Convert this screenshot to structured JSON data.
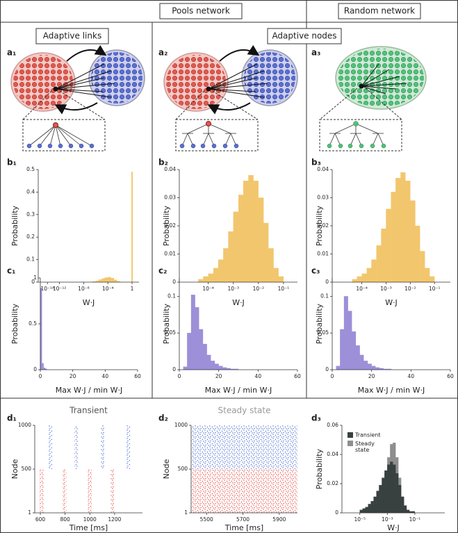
{
  "headers": [
    "Pools network",
    "Random network"
  ],
  "subheaders": [
    "Adaptive links",
    "Adaptive nodes"
  ],
  "diagrams": [
    "a₁",
    "a₂",
    "a₃"
  ],
  "chart_data": [
    {
      "type": "histogram",
      "panel": "b₁",
      "xlabel": "W·J",
      "ylabel": "Probability",
      "xlog": true,
      "color": "#f2c66d",
      "bins": [
        1e-07,
        3e-07,
        1e-06,
        3e-06,
        1e-05,
        3e-05,
        0.0001,
        0.0003,
        0.001,
        0.003,
        0.01,
        0.03,
        0.1,
        0.3,
        0.8,
        1.25
      ],
      "values": [
        0.001,
        0.003,
        0.006,
        0.011,
        0.016,
        0.02,
        0.022,
        0.018,
        0.01,
        0.004,
        0.001,
        0,
        0,
        0,
        0.49
      ],
      "xlim": [
        3e-16,
        14
      ],
      "xticks": [
        {
          "value": 1e-14,
          "label": "10⁻¹⁴"
        },
        {
          "value": 1e-12,
          "label": "10⁻¹²"
        },
        {
          "value": 1e-08,
          "label": "10⁻⁸"
        },
        {
          "value": 0.0001,
          "label": "10⁻⁴"
        },
        1
      ],
      "ylim": [
        0,
        0.5
      ],
      "yticks": [
        0,
        0.1,
        0.2,
        0.3,
        0.4,
        0.5
      ]
    },
    {
      "type": "histogram",
      "panel": "b₂",
      "xlabel": "W·J",
      "ylabel": "Probability",
      "xlog": true,
      "color": "#f2c66d",
      "bins": [
        4e-05,
        6.3e-05,
        0.0001,
        0.00016,
        0.00025,
        0.0004,
        0.00063,
        0.001,
        0.0016,
        0.0025,
        0.004,
        0.0063,
        0.01,
        0.016,
        0.025,
        0.04,
        0.063,
        0.1
      ],
      "values": [
        0.001,
        0.002,
        0.003,
        0.005,
        0.008,
        0.012,
        0.018,
        0.025,
        0.031,
        0.036,
        0.038,
        0.036,
        0.03,
        0.021,
        0.012,
        0.005,
        0.002
      ],
      "xlim": [
        7e-06,
        0.36
      ],
      "xticks": [
        {
          "value": 0.0001,
          "label": "10⁻⁴"
        },
        {
          "value": 0.001,
          "label": "10⁻³"
        },
        {
          "value": 0.01,
          "label": "10⁻²"
        },
        {
          "value": 0.1,
          "label": "10⁻¹"
        }
      ],
      "ylim": [
        0,
        0.04
      ],
      "yticks": [
        0,
        0.01,
        0.02,
        0.03,
        0.04
      ]
    },
    {
      "type": "histogram",
      "panel": "b₃",
      "xlabel": "W·J",
      "ylabel": "Probability",
      "xlog": true,
      "color": "#f2c66d",
      "bins": [
        4e-05,
        6.3e-05,
        0.0001,
        0.00016,
        0.00025,
        0.0004,
        0.00063,
        0.001,
        0.0016,
        0.0025,
        0.004,
        0.0063,
        0.01,
        0.016,
        0.025,
        0.04,
        0.063,
        0.1
      ],
      "values": [
        0.001,
        0.002,
        0.003,
        0.005,
        0.008,
        0.013,
        0.019,
        0.026,
        0.032,
        0.037,
        0.039,
        0.036,
        0.029,
        0.02,
        0.011,
        0.005,
        0.002
      ],
      "xlim": [
        6e-06,
        0.45
      ],
      "xticks": [
        {
          "value": 0.0001,
          "label": "10⁻⁴"
        },
        {
          "value": 0.001,
          "label": "10⁻³"
        },
        {
          "value": 0.01,
          "label": "10⁻²"
        },
        {
          "value": 0.1,
          "label": "10⁻¹"
        }
      ],
      "ylim": [
        0,
        0.04
      ],
      "yticks": [
        0,
        0.01,
        0.02,
        0.03,
        0.04
      ]
    },
    {
      "type": "histogram",
      "panel": "c₁",
      "xlabel": "Max W·J / min W·J",
      "ylabel": "Probability",
      "color": "#9d8fd8",
      "bins": [
        0,
        1,
        2,
        3,
        4
      ],
      "values": [
        0.89,
        0.07,
        0.02,
        0.01
      ],
      "xlim": [
        0,
        60
      ],
      "xticks": [
        0,
        20,
        40,
        60
      ],
      "ylim": [
        0,
        1
      ],
      "yticks": [
        0,
        0.5,
        1
      ]
    },
    {
      "type": "histogram",
      "panel": "c₂",
      "xlabel": "Max W·J / min W·J",
      "ylabel": "Probability",
      "color": "#9d8fd8",
      "bins": [
        0,
        2,
        4,
        6,
        8,
        10,
        12,
        14,
        16,
        18,
        20,
        22,
        24,
        26,
        28,
        30
      ],
      "values": [
        0,
        0.004,
        0.05,
        0.102,
        0.085,
        0.055,
        0.035,
        0.02,
        0.012,
        0.008,
        0.005,
        0.003,
        0.002,
        0.001,
        0.001
      ],
      "xlim": [
        0,
        60
      ],
      "xticks": [
        0,
        20,
        40,
        60
      ],
      "ylim": [
        0,
        0.125
      ],
      "yticks": [
        0,
        0.05,
        0.1
      ]
    },
    {
      "type": "histogram",
      "panel": "c₃",
      "xlabel": "Max W·J / min W·J",
      "ylabel": "Probability",
      "color": "#9d8fd8",
      "bins": [
        0,
        2,
        4,
        6,
        8,
        10,
        12,
        14,
        16,
        18,
        20,
        22,
        24,
        26,
        28,
        30
      ],
      "values": [
        0,
        0.005,
        0.055,
        0.1,
        0.08,
        0.052,
        0.033,
        0.02,
        0.012,
        0.008,
        0.005,
        0.003,
        0.002,
        0.001,
        0.001
      ],
      "xlim": [
        0,
        60
      ],
      "xticks": [
        0,
        20,
        40,
        60
      ],
      "ylim": [
        0,
        0.125
      ],
      "yticks": [
        0,
        0.05,
        0.1
      ]
    },
    {
      "type": "raster",
      "panel": "d₁",
      "title": "Transient",
      "title_color": "#555555",
      "xlabel": "Time [ms]",
      "ylabel": "Node",
      "series": [
        {
          "color": "#e0453d",
          "nodes": [
            1,
            500
          ],
          "bursts": [
            [
              595,
              625
            ],
            [
              780,
              810
            ],
            [
              985,
              1015
            ],
            [
              1170,
              1200
            ]
          ]
        },
        {
          "color": "#4a6bcf",
          "nodes": [
            501,
            1000
          ],
          "bursts": [
            [
              665,
              695
            ],
            [
              875,
              905
            ],
            [
              1090,
              1120
            ],
            [
              1295,
              1325
            ]
          ]
        }
      ],
      "xlim": [
        555,
        1425
      ],
      "xticks": [
        600,
        800,
        1000,
        1200
      ],
      "ylim": [
        1,
        1000
      ],
      "yticks": [
        1,
        500,
        1000
      ]
    },
    {
      "type": "raster",
      "panel": "d₂",
      "title": "Steady state",
      "title_color": "#999999",
      "xlabel": "Time [ms]",
      "ylabel": "Node",
      "series": [
        {
          "color": "#e0453d",
          "nodes": [
            1,
            500
          ],
          "bursts": [
            [
              5415,
              6000
            ]
          ]
        },
        {
          "color": "#4a6bcf",
          "nodes": [
            501,
            1000
          ],
          "bursts": [
            [
              5415,
              6000
            ]
          ]
        }
      ],
      "xlim": [
        5415,
        6000
      ],
      "xticks": [
        5500,
        5700,
        5900
      ],
      "ylim": [
        1,
        1000
      ],
      "yticks": [
        1,
        500,
        1000
      ]
    },
    {
      "type": "histogram",
      "panel": "d₃",
      "xlabel": "W·J",
      "ylabel": "Probability",
      "xlog": true,
      "legend": "upper left",
      "bins": [
        1e-05,
        1.6e-05,
        2.5e-05,
        4e-05,
        6.3e-05,
        0.0001,
        0.00016,
        0.00025,
        0.0004,
        0.00063,
        0.001,
        0.0016,
        0.0025,
        0.004,
        0.0063,
        0.01,
        0.016,
        0.025,
        0.04,
        0.063,
        0.1,
        0.16
      ],
      "series": [
        {
          "name": "Steady state",
          "color": "#8e8e8e",
          "values": [
            0,
            0,
            0.001,
            0.001,
            0.002,
            0.003,
            0.006,
            0.01,
            0.017,
            0.027,
            0.038,
            0.047,
            0.048,
            0.038,
            0.024,
            0.011,
            0.004,
            0.001,
            0,
            0,
            0
          ]
        },
        {
          "name": "Transient",
          "color": "#384040",
          "values": [
            0.002,
            0.003,
            0.004,
            0.006,
            0.008,
            0.011,
            0.015,
            0.019,
            0.024,
            0.029,
            0.033,
            0.035,
            0.033,
            0.027,
            0.019,
            0.011,
            0.005,
            0.002,
            0.001,
            0.001,
            0
          ]
        }
      ],
      "xlim": [
        5e-07,
        15
      ],
      "xticks": [
        {
          "value": 1e-05,
          "label": "10⁻⁵"
        },
        {
          "value": 0.001,
          "label": "10⁻³"
        },
        {
          "value": 0.1,
          "label": "10⁻¹"
        }
      ],
      "ylim": [
        0,
        0.06
      ],
      "yticks": [
        0,
        0.02,
        0.04,
        0.06
      ]
    }
  ]
}
